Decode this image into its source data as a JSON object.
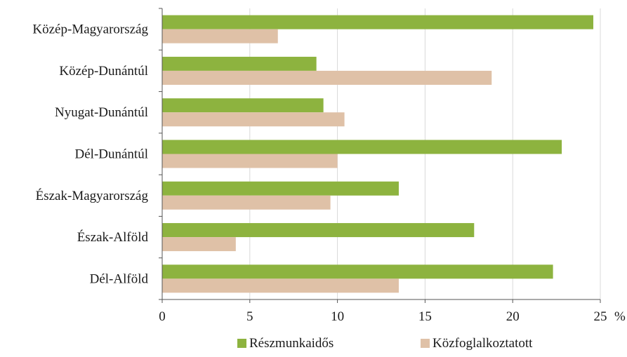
{
  "chart_data": {
    "type": "bar",
    "orientation": "horizontal",
    "categories": [
      "Közép-Magyarország",
      "Közép-Dunántúl",
      "Nyugat-Dunántúl",
      "Dél-Dunántúl",
      "Észak-Magyarország",
      "Észak-Alföld",
      "Dél-Alföld"
    ],
    "series": [
      {
        "name": "Részmunkaidős",
        "color": "#8db33f",
        "values": [
          24.6,
          8.8,
          9.2,
          22.8,
          13.5,
          17.8,
          22.3
        ]
      },
      {
        "name": "Közfoglalkoztatott",
        "color": "#dfc1a7",
        "values": [
          6.6,
          18.8,
          10.4,
          10.0,
          9.6,
          4.2,
          13.5
        ]
      }
    ],
    "xlim": [
      0,
      25
    ],
    "x_ticks": [
      "0",
      "5",
      "10",
      "15",
      "20",
      "25"
    ],
    "x_unit": "%",
    "grid": "vertical",
    "legend_position": "bottom"
  }
}
